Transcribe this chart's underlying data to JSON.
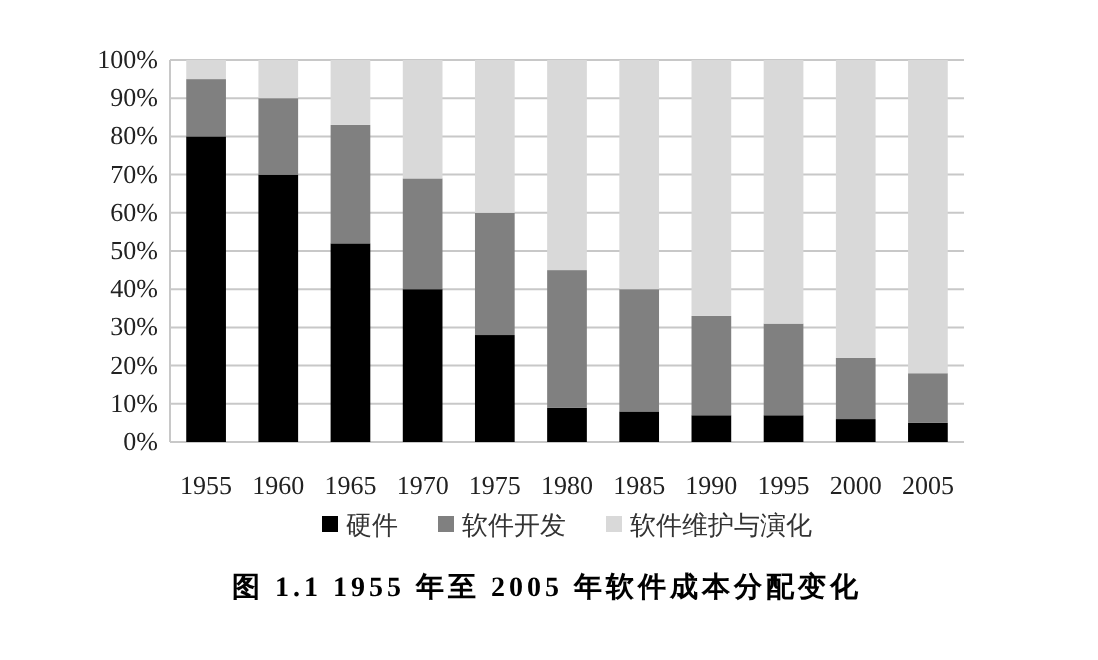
{
  "chart_data": {
    "type": "bar",
    "stacked": true,
    "title": "图 1.1 1955 年至 2005 年软件成本分配变化",
    "categories": [
      "1955",
      "1960",
      "1965",
      "1970",
      "1975",
      "1980",
      "1985",
      "1990",
      "1995",
      "2000",
      "2005"
    ],
    "series": [
      {
        "name": "硬件",
        "color": "#000000",
        "values": [
          80,
          70,
          52,
          40,
          28,
          9,
          8,
          7,
          7,
          6,
          5
        ]
      },
      {
        "name": "软件开发",
        "color": "#808080",
        "values": [
          15,
          20,
          31,
          29,
          32,
          36,
          32,
          26,
          24,
          16,
          13
        ]
      },
      {
        "name": "软件维护与演化",
        "color": "#d9d9d9",
        "values": [
          5,
          10,
          17,
          31,
          40,
          55,
          60,
          67,
          69,
          78,
          82
        ]
      }
    ],
    "ylim": [
      0,
      100
    ],
    "yticks": [
      {
        "value": 0,
        "label": "0%"
      },
      {
        "value": 10,
        "label": "10%"
      },
      {
        "value": 20,
        "label": "20%"
      },
      {
        "value": 30,
        "label": "30%"
      },
      {
        "value": 40,
        "label": "40%"
      },
      {
        "value": 50,
        "label": "50%"
      },
      {
        "value": 60,
        "label": "60%"
      },
      {
        "value": 70,
        "label": "70%"
      },
      {
        "value": 80,
        "label": "80%"
      },
      {
        "value": 90,
        "label": "90%"
      },
      {
        "value": 100,
        "label": "100%"
      }
    ],
    "grid": "y",
    "legend": "bottom"
  }
}
